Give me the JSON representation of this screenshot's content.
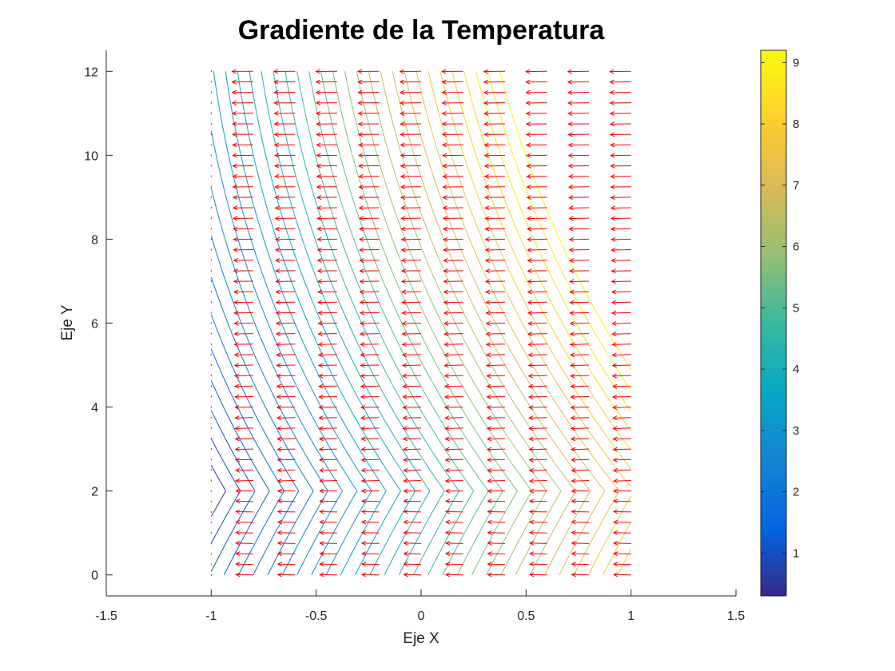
{
  "chart_data": {
    "type": "contour",
    "title": "Gradiente de la Temperatura",
    "xlabel": "Eje X",
    "ylabel": "Eje Y",
    "xlim": [
      -1.5,
      1.5
    ],
    "ylim": [
      -0.5,
      12.5
    ],
    "x_ticks": [
      "-1.5",
      "-1",
      "-0.5",
      "0",
      "0.5",
      "1",
      "1.5"
    ],
    "x_tick_values": [
      -1.5,
      -1,
      -0.5,
      0,
      0.5,
      1,
      1.5
    ],
    "y_ticks": [
      "0",
      "2",
      "4",
      "6",
      "8",
      "10",
      "12"
    ],
    "y_tick_values": [
      0,
      2,
      4,
      6,
      8,
      10,
      12
    ],
    "grid": false,
    "colorbar": {
      "colormap": "parula",
      "range": [
        0.3,
        9.2
      ],
      "ticks": [
        "1",
        "2",
        "3",
        "4",
        "5",
        "6",
        "7",
        "8",
        "9"
      ],
      "tick_values": [
        1,
        2,
        3,
        4,
        5,
        6,
        7,
        8,
        9
      ]
    },
    "field": {
      "description": "temperature field on grid x in [-1,1], y in [0,12]; quiver shows gradient vectors",
      "x_range": [
        -1,
        1
      ],
      "y_range": [
        0,
        12
      ],
      "x_grid_count": 11,
      "y_grid_count": 49,
      "contour_levels": [
        0.55,
        0.8,
        1.05,
        1.3,
        1.55,
        1.8,
        2.05,
        2.3,
        2.55,
        2.8,
        3.05,
        3.3,
        3.55,
        3.8,
        4.05,
        4.3,
        4.55,
        4.8,
        5.05,
        5.3,
        5.55,
        5.8,
        6.05,
        6.3,
        6.55,
        6.8,
        7.05,
        7.3,
        7.55,
        7.8,
        8.05,
        8.3,
        8.55,
        8.8,
        9.05
      ],
      "quiver_color": "#ff0000"
    }
  }
}
